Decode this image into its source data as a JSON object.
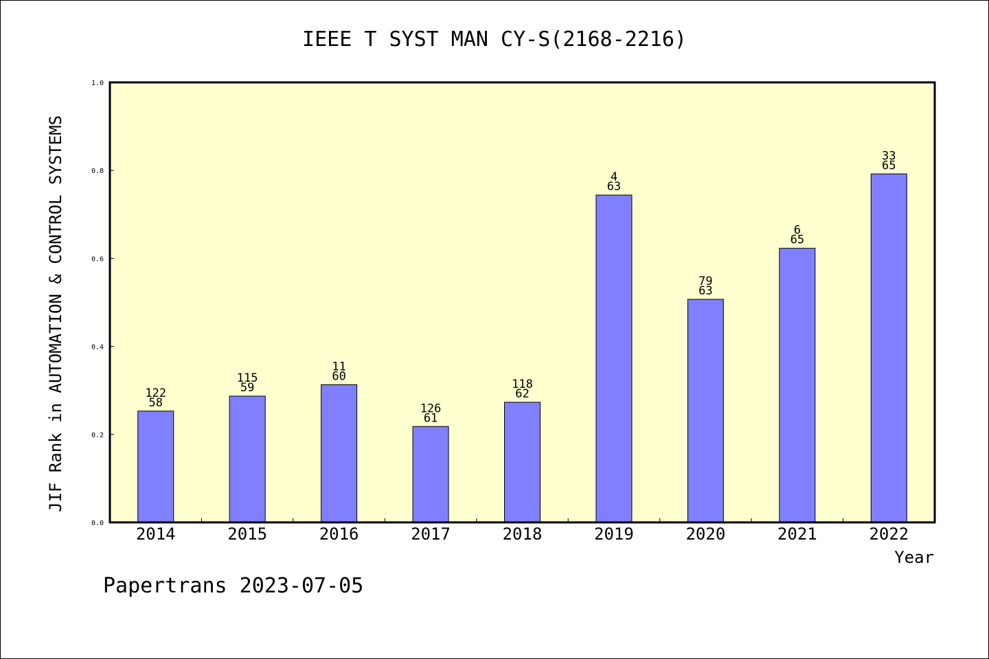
{
  "chart_data": {
    "type": "bar",
    "title": "IEEE T SYST MAN CY-S(2168-2216)",
    "xlabel": "Year",
    "ylabel": "JIF Rank in AUTOMATION & CONTROL SYSTEMS",
    "ylim": [
      0,
      1.0
    ],
    "yticks": [
      "0.0",
      "0.2",
      "0.4",
      "0.6",
      "0.8",
      "1.0"
    ],
    "categories": [
      "2014",
      "2015",
      "2016",
      "2017",
      "2018",
      "2019",
      "2020",
      "2021",
      "2022"
    ],
    "values": [
      0.253,
      0.287,
      0.313,
      0.218,
      0.273,
      0.744,
      0.507,
      0.623,
      0.792
    ],
    "rank_labels": [
      "122",
      "115",
      "11",
      "126",
      "118",
      "4",
      "79",
      "6",
      "33"
    ],
    "count_labels": [
      "58",
      "59",
      "60",
      "61",
      "62",
      "63",
      "63",
      "65",
      "65"
    ],
    "grid": false,
    "legend": "none",
    "colors": {
      "plot_background": "#ffffd0",
      "bar_fill": "#8080ff",
      "bar_stroke": "#000000"
    }
  },
  "footer": "Papertrans 2023-07-05"
}
